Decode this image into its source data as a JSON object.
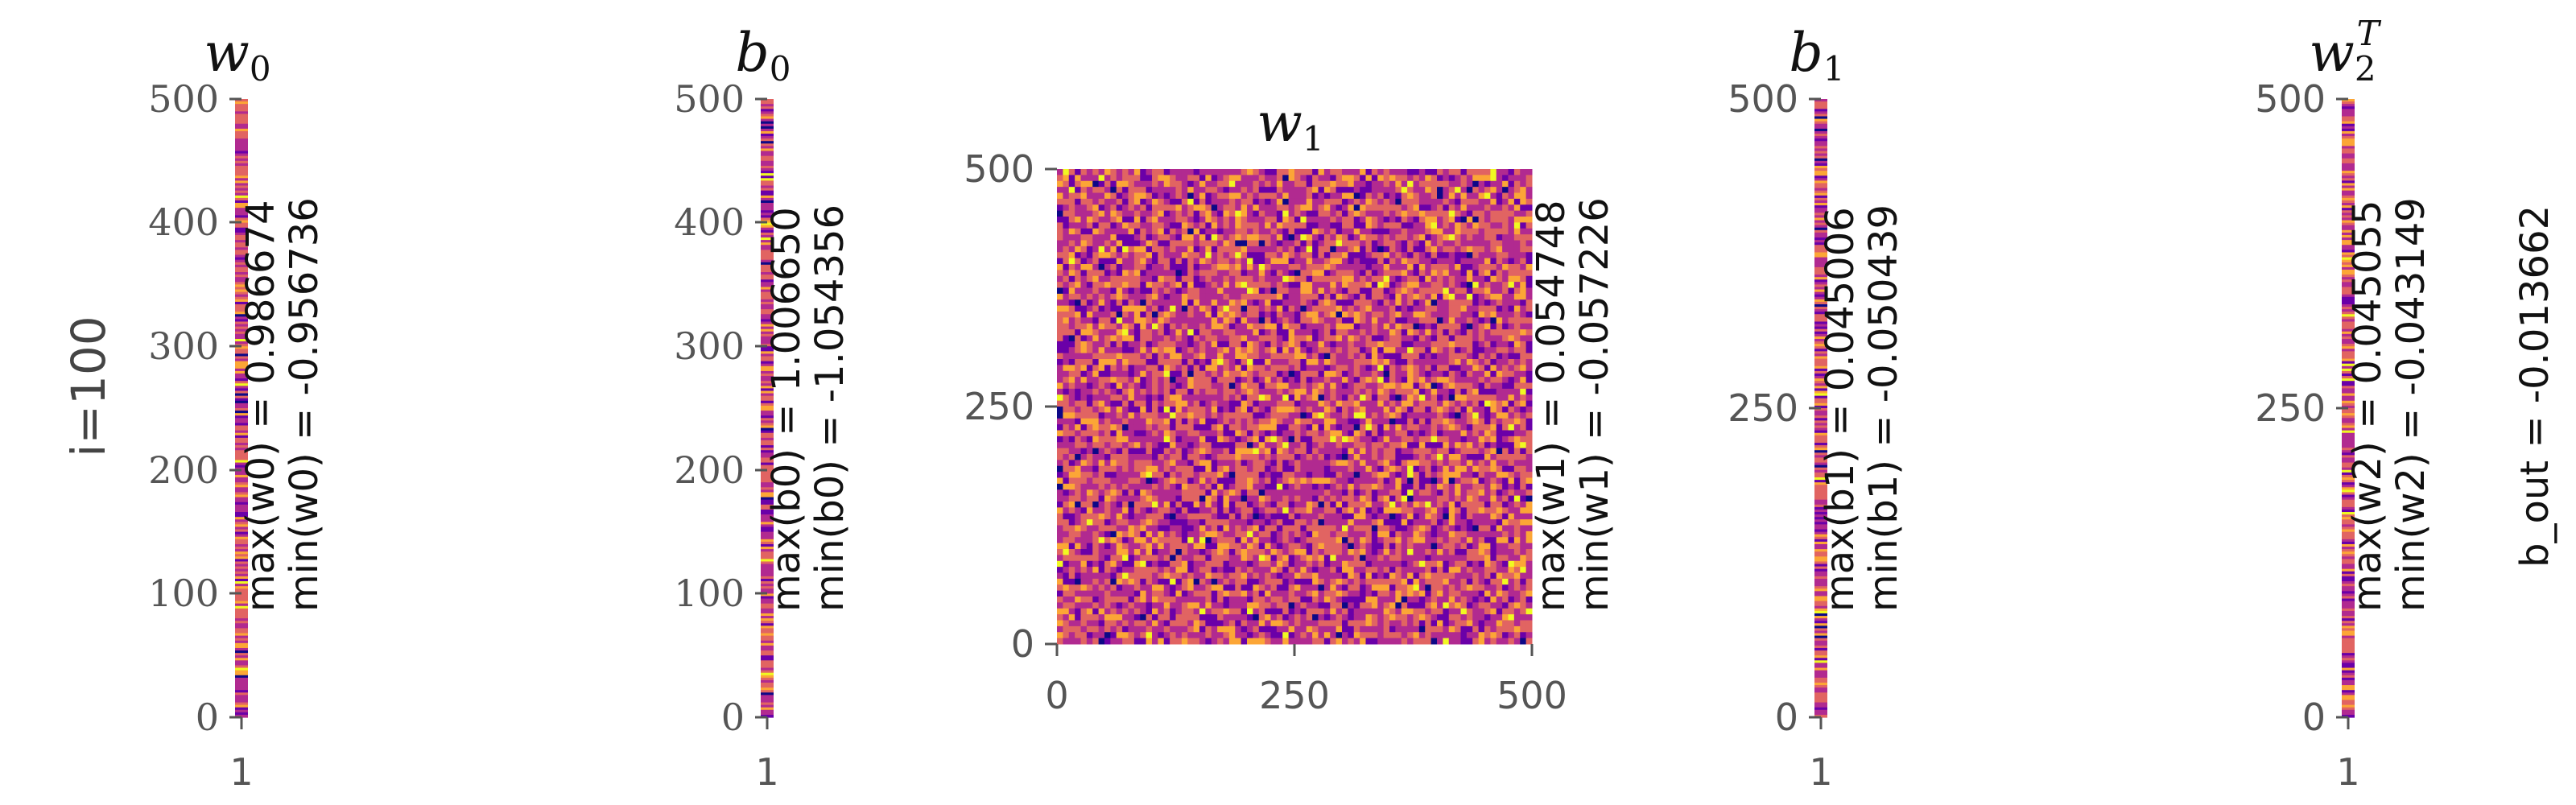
{
  "chart_data": [
    {
      "type": "heatmap",
      "title": "w0",
      "ylabel": "i=100",
      "xticks": [
        "1"
      ],
      "yticks": [
        "0",
        "100",
        "200",
        "300",
        "400",
        "500"
      ],
      "ylim": [
        0,
        500
      ],
      "annotation_max": "max(w0) = 0.986674",
      "annotation_min": "min(w0) = -0.956736"
    },
    {
      "type": "heatmap",
      "title": "b0",
      "xticks": [
        "1"
      ],
      "yticks": [
        "0",
        "100",
        "200",
        "300",
        "400",
        "500"
      ],
      "ylim": [
        0,
        500
      ],
      "annotation_max": "max(b0) = 1.006650",
      "annotation_min": "min(b0) = -1.054356"
    },
    {
      "type": "heatmap",
      "title": "w1",
      "xticks": [
        "0",
        "250",
        "500"
      ],
      "yticks": [
        "0",
        "250",
        "500"
      ],
      "xlim": [
        0,
        500
      ],
      "ylim": [
        0,
        500
      ],
      "annotation_max": "max(w1) = 0.054748",
      "annotation_min": "min(w1) = -0.057226"
    },
    {
      "type": "heatmap",
      "title": "b1",
      "xticks": [
        "1"
      ],
      "yticks": [
        "0",
        "250",
        "500"
      ],
      "ylim": [
        0,
        500
      ],
      "annotation_max": "max(b1) = 0.045006",
      "annotation_min": "min(b1) = -0.050439"
    },
    {
      "type": "heatmap",
      "title": "w2T",
      "xticks": [
        "1"
      ],
      "yticks": [
        "0",
        "250",
        "500"
      ],
      "ylim": [
        0,
        500
      ],
      "annotation_max": "max(w2) = 0.045055",
      "annotation_min": "min(w2) = -0.043149"
    }
  ],
  "b_out_label": "b_out = -0.013662",
  "colormap": [
    "#0d0887",
    "#6a00a8",
    "#b12a90",
    "#e16462",
    "#fca636",
    "#f0f921"
  ]
}
